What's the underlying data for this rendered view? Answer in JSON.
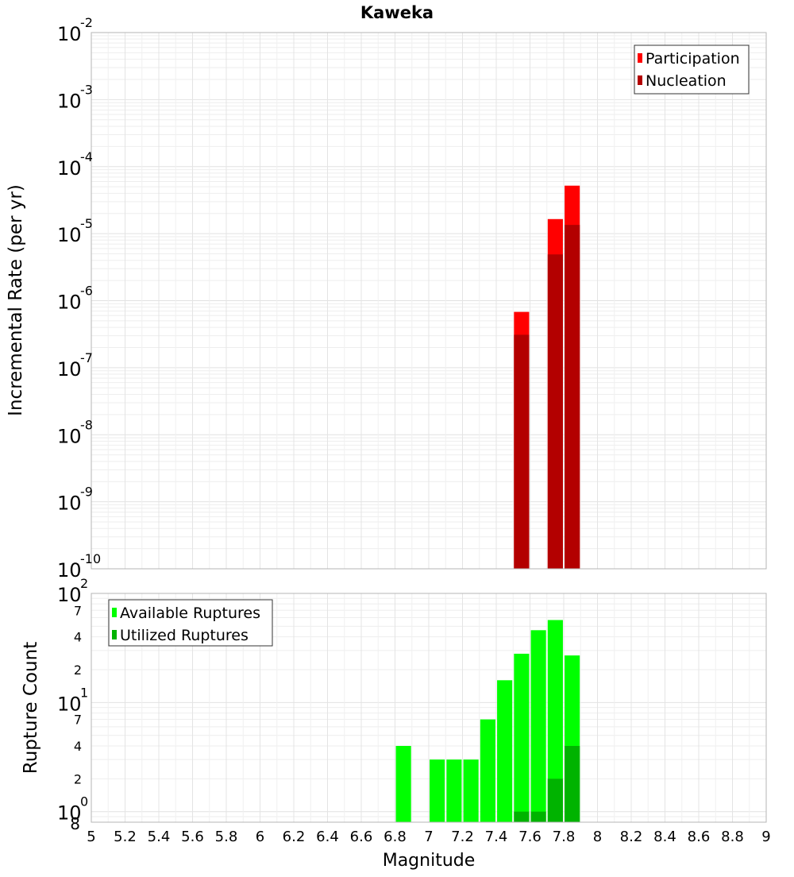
{
  "chart_data": [
    {
      "type": "bar",
      "title": "Kaweka",
      "xlabel": "Magnitude",
      "ylabel": "Incremental Rate (per yr)",
      "yscale": "log",
      "ylim": [
        1e-10,
        0.01
      ],
      "xlim": [
        5,
        9
      ],
      "grid": true,
      "legend_position": "top-right",
      "bar_width": 0.09,
      "y_ticks": [
        {
          "base": "10",
          "exp": "-10",
          "value": 1e-10
        },
        {
          "base": "10",
          "exp": "-9",
          "value": 1e-09
        },
        {
          "base": "10",
          "exp": "-8",
          "value": 1e-08
        },
        {
          "base": "10",
          "exp": "-7",
          "value": 1e-07
        },
        {
          "base": "10",
          "exp": "-6",
          "value": 1e-06
        },
        {
          "base": "10",
          "exp": "-5",
          "value": 1e-05
        },
        {
          "base": "10",
          "exp": "-4",
          "value": 0.0001
        },
        {
          "base": "10",
          "exp": "-3",
          "value": 0.001
        },
        {
          "base": "10",
          "exp": "-2",
          "value": 0.01
        }
      ],
      "series": [
        {
          "name": "Participation",
          "color": "#ff0000",
          "points": [
            {
              "x": 7.55,
              "y": 6.8e-07
            },
            {
              "x": 7.75,
              "y": 1.65e-05
            },
            {
              "x": 7.85,
              "y": 5.2e-05
            }
          ]
        },
        {
          "name": "Nucleation",
          "color": "#b30000",
          "points": [
            {
              "x": 7.55,
              "y": 3.1e-07
            },
            {
              "x": 7.75,
              "y": 4.9e-06
            },
            {
              "x": 7.85,
              "y": 1.35e-05
            }
          ]
        }
      ]
    },
    {
      "type": "bar",
      "xlabel": "Magnitude",
      "ylabel": "Rupture Count",
      "yscale": "log",
      "ylim": [
        0.8,
        100
      ],
      "xlim": [
        5,
        9
      ],
      "grid": true,
      "legend_position": "top-left",
      "bar_width": 0.09,
      "y_ticks": [
        {
          "base": "10",
          "exp": "0",
          "value": 1
        },
        {
          "base": "10",
          "exp": "1",
          "value": 10
        },
        {
          "base": "10",
          "exp": "2",
          "value": 100
        }
      ],
      "y_minor_labels": [
        {
          "label": "8",
          "value": 0.8
        },
        {
          "label": "2",
          "value": 2
        },
        {
          "label": "4",
          "value": 4
        },
        {
          "label": "7",
          "value": 7
        },
        {
          "label": "2",
          "value": 20
        },
        {
          "label": "4",
          "value": 40
        },
        {
          "label": "7",
          "value": 70
        }
      ],
      "series": [
        {
          "name": "Available Ruptures",
          "color": "#00ff00",
          "points": [
            {
              "x": 6.85,
              "y": 4
            },
            {
              "x": 7.05,
              "y": 3
            },
            {
              "x": 7.15,
              "y": 3
            },
            {
              "x": 7.25,
              "y": 3
            },
            {
              "x": 7.35,
              "y": 7
            },
            {
              "x": 7.45,
              "y": 16
            },
            {
              "x": 7.55,
              "y": 28
            },
            {
              "x": 7.65,
              "y": 46
            },
            {
              "x": 7.75,
              "y": 57
            },
            {
              "x": 7.85,
              "y": 27
            }
          ]
        },
        {
          "name": "Utilized Ruptures",
          "color": "#00b300",
          "points": [
            {
              "x": 7.55,
              "y": 1
            },
            {
              "x": 7.65,
              "y": 1
            },
            {
              "x": 7.75,
              "y": 2
            },
            {
              "x": 7.85,
              "y": 4
            }
          ]
        }
      ]
    }
  ],
  "x_ticks": [
    "5",
    "5.2",
    "5.4",
    "5.6",
    "5.8",
    "6",
    "6.2",
    "6.4",
    "6.6",
    "6.8",
    "7",
    "7.2",
    "7.4",
    "7.6",
    "7.8",
    "8",
    "8.2",
    "8.4",
    "8.6",
    "8.8",
    "9"
  ]
}
